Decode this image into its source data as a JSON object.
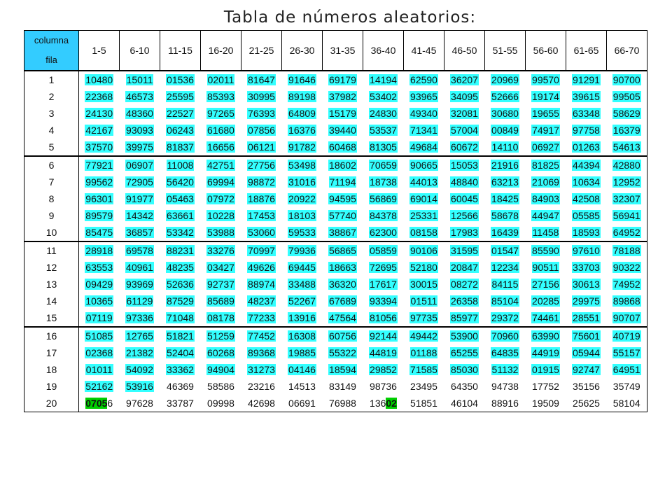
{
  "title": "Tabla de números aleatorios:",
  "corner": {
    "line1": "columna",
    "line2": "fila"
  },
  "columns": [
    "1-5",
    "6-10",
    "11-15",
    "16-20",
    "21-25",
    "26-30",
    "31-35",
    "36-40",
    "41-45",
    "46-50",
    "51-55",
    "56-60",
    "61-65",
    "66-70"
  ],
  "rows": [
    {
      "fila": "1",
      "values": [
        "10480",
        "15011",
        "01536",
        "02011",
        "81647",
        "91646",
        "69179",
        "14194",
        "62590",
        "36207",
        "20969",
        "99570",
        "91291",
        "90700"
      ]
    },
    {
      "fila": "2",
      "values": [
        "22368",
        "46573",
        "25595",
        "85393",
        "30995",
        "89198",
        "37982",
        "53402",
        "93965",
        "34095",
        "52666",
        "19174",
        "39615",
        "99505"
      ]
    },
    {
      "fila": "3",
      "values": [
        "24130",
        "48360",
        "22527",
        "97265",
        "76393",
        "64809",
        "15179",
        "24830",
        "49340",
        "32081",
        "30680",
        "19655",
        "63348",
        "58629"
      ]
    },
    {
      "fila": "4",
      "values": [
        "42167",
        "93093",
        "06243",
        "61680",
        "07856",
        "16376",
        "39440",
        "53537",
        "71341",
        "57004",
        "00849",
        "74917",
        "97758",
        "16379"
      ]
    },
    {
      "fila": "5",
      "values": [
        "37570",
        "39975",
        "81837",
        "16656",
        "06121",
        "91782",
        "60468",
        "81305",
        "49684",
        "60672",
        "14110",
        "06927",
        "01263",
        "54613"
      ]
    },
    {
      "fila": "6",
      "values": [
        "77921",
        "06907",
        "11008",
        "42751",
        "27756",
        "53498",
        "18602",
        "70659",
        "90665",
        "15053",
        "21916",
        "81825",
        "44394",
        "42880"
      ]
    },
    {
      "fila": "7",
      "values": [
        "99562",
        "72905",
        "56420",
        "69994",
        "98872",
        "31016",
        "71194",
        "18738",
        "44013",
        "48840",
        "63213",
        "21069",
        "10634",
        "12952"
      ]
    },
    {
      "fila": "8",
      "values": [
        "96301",
        "91977",
        "05463",
        "07972",
        "18876",
        "20922",
        "94595",
        "56869",
        "69014",
        "60045",
        "18425",
        "84903",
        "42508",
        "32307"
      ]
    },
    {
      "fila": "9",
      "values": [
        "89579",
        "14342",
        "63661",
        "10228",
        "17453",
        "18103",
        "57740",
        "84378",
        "25331",
        "12566",
        "58678",
        "44947",
        "05585",
        "56941"
      ]
    },
    {
      "fila": "10",
      "values": [
        "85475",
        "36857",
        "53342",
        "53988",
        "53060",
        "59533",
        "38867",
        "62300",
        "08158",
        "17983",
        "16439",
        "11458",
        "18593",
        "64952"
      ]
    },
    {
      "fila": "11",
      "values": [
        "28918",
        "69578",
        "88231",
        "33276",
        "70997",
        "79936",
        "56865",
        "05859",
        "90106",
        "31595",
        "01547",
        "85590",
        "97610",
        "78188"
      ]
    },
    {
      "fila": "12",
      "values": [
        "63553",
        "40961",
        "48235",
        "03427",
        "49626",
        "69445",
        "18663",
        "72695",
        "52180",
        "20847",
        "12234",
        "90511",
        "33703",
        "90322"
      ]
    },
    {
      "fila": "13",
      "values": [
        "09429",
        "93969",
        "52636",
        "92737",
        "88974",
        "33488",
        "36320",
        "17617",
        "30015",
        "08272",
        "84115",
        "27156",
        "30613",
        "74952"
      ]
    },
    {
      "fila": "14",
      "values": [
        "10365",
        "61129",
        "87529",
        "85689",
        "48237",
        "52267",
        "67689",
        "93394",
        "01511",
        "26358",
        "85104",
        "20285",
        "29975",
        "89868"
      ]
    },
    {
      "fila": "15",
      "values": [
        "07119",
        "97336",
        "71048",
        "08178",
        "77233",
        "13916",
        "47564",
        "81056",
        "97735",
        "85977",
        "29372",
        "74461",
        "28551",
        "90707"
      ]
    },
    {
      "fila": "16",
      "values": [
        "51085",
        "12765",
        "51821",
        "51259",
        "77452",
        "16308",
        "60756",
        "92144",
        "49442",
        "53900",
        "70960",
        "63990",
        "75601",
        "40719"
      ]
    },
    {
      "fila": "17",
      "values": [
        "02368",
        "21382",
        "52404",
        "60268",
        "89368",
        "19885",
        "55322",
        "44819",
        "01188",
        "65255",
        "64835",
        "44919",
        "05944",
        "55157"
      ]
    },
    {
      "fila": "18",
      "values": [
        "01011",
        "54092",
        "33362",
        "94904",
        "31273",
        "04146",
        "18594",
        "29852",
        "71585",
        "85030",
        "51132",
        "01915",
        "92747",
        "64951"
      ]
    },
    {
      "fila": "19",
      "values": [
        "52162",
        "53916",
        "46369",
        "58586",
        "23216",
        "14513",
        "83149",
        "98736",
        "23495",
        "64350",
        "94738",
        "17752",
        "35156",
        "35749"
      ]
    },
    {
      "fila": "20",
      "values": [
        "07056",
        "97628",
        "33787",
        "09998",
        "42698",
        "06691",
        "76988",
        "13602",
        "51851",
        "46104",
        "88916",
        "19509",
        "25625",
        "58104"
      ]
    }
  ],
  "highlight": {
    "cyan_color": "#33ffff",
    "green_color": "#00d000",
    "header_color": "#33ccff"
  }
}
